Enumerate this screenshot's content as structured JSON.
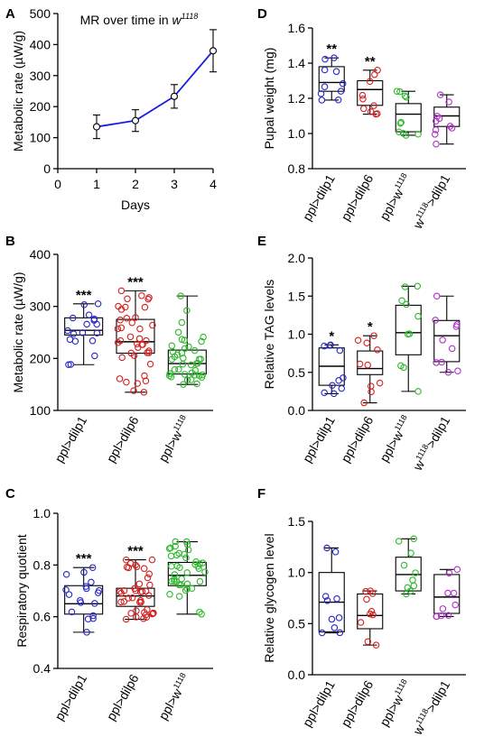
{
  "figure": {
    "panel_labels": [
      "A",
      "B",
      "C",
      "D",
      "E",
      "F"
    ]
  },
  "colors": {
    "dilp1": "#2727c8",
    "dilp6": "#d42020",
    "w1118": "#2eb82e",
    "w1118dilp1": "#b030c8",
    "line": "#1a1ae6"
  },
  "chart_data": [
    {
      "id": "A",
      "type": "line",
      "title": "MR over time in w1118",
      "xlabel": "Days",
      "ylabel": "Metabolic rate (µW/g)",
      "x": [
        1,
        2,
        3,
        4
      ],
      "y": [
        135,
        155,
        233,
        380
      ],
      "err": [
        38,
        35,
        38,
        68
      ],
      "xlim": [
        0,
        4
      ],
      "ylim": [
        0,
        500
      ],
      "xticks": [
        0,
        1,
        2,
        3,
        4
      ],
      "yticks": [
        0,
        100,
        200,
        300,
        400,
        500
      ]
    },
    {
      "id": "B",
      "type": "box",
      "ylabel": "Metabolic rate (µW/g)",
      "ylim": [
        100,
        400
      ],
      "yticks": [
        100,
        200,
        300,
        400
      ],
      "categories": [
        "ppl>dilp1",
        "ppl>dilp6",
        "ppl>w1118"
      ],
      "colors": [
        "dilp1",
        "dilp6",
        "w1118"
      ],
      "boxes": [
        {
          "min": 188,
          "q1": 245,
          "median": 254,
          "q3": 278,
          "max": 305
        },
        {
          "min": 135,
          "q1": 210,
          "median": 232,
          "q3": 275,
          "max": 330
        },
        {
          "min": 150,
          "q1": 170,
          "median": 190,
          "q3": 216,
          "max": 320
        }
      ],
      "significance": [
        "***",
        "***",
        ""
      ]
    },
    {
      "id": "C",
      "type": "box",
      "ylabel": "Respiratory quotient",
      "ylim": [
        0.4,
        1.0
      ],
      "yticks": [
        0.4,
        0.6,
        0.8,
        1.0
      ],
      "categories": [
        "ppl>dilp1",
        "ppl>dilp6",
        "ppl>w1118"
      ],
      "colors": [
        "dilp1",
        "dilp6",
        "w1118"
      ],
      "boxes": [
        {
          "min": 0.54,
          "q1": 0.61,
          "median": 0.65,
          "q3": 0.72,
          "max": 0.79
        },
        {
          "min": 0.59,
          "q1": 0.64,
          "median": 0.68,
          "q3": 0.71,
          "max": 0.82
        },
        {
          "min": 0.61,
          "q1": 0.72,
          "median": 0.76,
          "q3": 0.81,
          "max": 0.89
        }
      ],
      "significance": [
        "***",
        "***",
        ""
      ]
    },
    {
      "id": "D",
      "type": "box",
      "ylabel": "Pupal weight (mg)",
      "ylim": [
        0.8,
        1.6
      ],
      "yticks": [
        0.8,
        1.0,
        1.2,
        1.4,
        1.6
      ],
      "categories": [
        "ppl>dilp1",
        "ppl>dilp6",
        "ppl>w1118",
        "w1118>dilp1"
      ],
      "colors": [
        "dilp1",
        "dilp6",
        "w1118",
        "w1118dilp1"
      ],
      "boxes": [
        {
          "min": 1.19,
          "q1": 1.24,
          "median": 1.29,
          "q3": 1.38,
          "max": 1.43
        },
        {
          "min": 1.11,
          "q1": 1.16,
          "median": 1.25,
          "q3": 1.3,
          "max": 1.36
        },
        {
          "min": 0.99,
          "q1": 1.01,
          "median": 1.11,
          "q3": 1.17,
          "max": 1.24
        },
        {
          "min": 0.94,
          "q1": 1.04,
          "median": 1.1,
          "q3": 1.15,
          "max": 1.22
        }
      ],
      "significance": [
        "**",
        "**",
        "",
        ""
      ]
    },
    {
      "id": "E",
      "type": "box",
      "ylabel": "Relative TAG levels",
      "ylim": [
        0.0,
        2.0
      ],
      "yticks": [
        0.0,
        0.5,
        1.0,
        1.5,
        2.0
      ],
      "categories": [
        "ppl>dilp1",
        "ppl>dilp6",
        "ppl>w1118",
        "w1118>dilp1"
      ],
      "colors": [
        "dilp1",
        "dilp6",
        "w1118",
        "w1118dilp1"
      ],
      "boxes": [
        {
          "min": 0.22,
          "q1": 0.33,
          "median": 0.58,
          "q3": 0.82,
          "max": 0.86
        },
        {
          "min": 0.1,
          "q1": 0.47,
          "median": 0.55,
          "q3": 0.78,
          "max": 0.98
        },
        {
          "min": 0.25,
          "q1": 0.73,
          "median": 1.02,
          "q3": 1.38,
          "max": 1.63
        },
        {
          "min": 0.5,
          "q1": 0.64,
          "median": 0.98,
          "q3": 1.18,
          "max": 1.5
        }
      ],
      "significance": [
        "*",
        "*",
        "",
        ""
      ]
    },
    {
      "id": "F",
      "type": "box",
      "ylabel": "Relative glycogen level",
      "ylim": [
        0.0,
        1.5
      ],
      "yticks": [
        0.0,
        0.5,
        1.0,
        1.5
      ],
      "categories": [
        "ppl>dilp1",
        "ppl>dilp6",
        "ppl>w1118",
        "w1118>dilp1"
      ],
      "colors": [
        "dilp1",
        "dilp6",
        "w1118",
        "w1118dilp1"
      ],
      "boxes": [
        {
          "min": 0.41,
          "q1": 0.42,
          "median": 0.71,
          "q3": 1.0,
          "max": 1.24
        },
        {
          "min": 0.29,
          "q1": 0.45,
          "median": 0.58,
          "q3": 0.79,
          "max": 0.82
        },
        {
          "min": 0.79,
          "q1": 0.82,
          "median": 0.98,
          "q3": 1.15,
          "max": 1.33
        },
        {
          "min": 0.57,
          "q1": 0.6,
          "median": 0.76,
          "q3": 0.98,
          "max": 1.03
        }
      ],
      "significance": [
        "",
        "",
        "",
        ""
      ]
    }
  ]
}
